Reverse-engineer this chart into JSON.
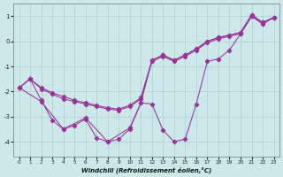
{
  "xlabel": "Windchill (Refroidissement éolien,°C)",
  "background_color": "#cce8e8",
  "grid_color": "#aacfcf",
  "line_color": "#993399",
  "xlim": [
    -0.5,
    23.5
  ],
  "ylim": [
    -4.6,
    1.5
  ],
  "yticks": [
    -4,
    -3,
    -2,
    -1,
    0,
    1
  ],
  "xticks": [
    0,
    1,
    2,
    3,
    4,
    5,
    6,
    7,
    8,
    9,
    10,
    11,
    12,
    13,
    14,
    15,
    16,
    17,
    18,
    19,
    20,
    21,
    22,
    23
  ],
  "line_zigzag_x": [
    0,
    1,
    2,
    3,
    4,
    5,
    6,
    7,
    8,
    9,
    10,
    11,
    12,
    13,
    14,
    15,
    16,
    17,
    18,
    19,
    20,
    21,
    22,
    23
  ],
  "line_zigzag_y": [
    -1.85,
    -1.5,
    -2.35,
    -3.15,
    -3.5,
    -3.35,
    -3.1,
    -3.85,
    -4.0,
    -3.9,
    -3.5,
    -2.45,
    -2.5,
    -3.55,
    -4.0,
    -3.9,
    -2.5,
    -0.8,
    -0.7,
    -0.35,
    0.3,
    1.0,
    0.7,
    0.95
  ],
  "line_diag1_x": [
    0,
    1,
    2,
    3,
    4,
    5,
    6,
    7,
    8,
    9,
    10,
    11,
    12,
    13,
    14,
    15,
    16,
    17,
    18,
    19,
    20,
    21,
    22,
    23
  ],
  "line_diag1_y": [
    -1.85,
    -1.5,
    -1.9,
    -2.1,
    -2.3,
    -2.4,
    -2.5,
    -2.6,
    -2.7,
    -2.75,
    -2.6,
    -2.3,
    -0.8,
    -0.6,
    -0.8,
    -0.6,
    -0.35,
    -0.05,
    0.1,
    0.2,
    0.3,
    1.0,
    0.7,
    0.95
  ],
  "line_diag2_x": [
    0,
    1,
    2,
    3,
    4,
    5,
    6,
    7,
    8,
    9,
    10,
    11,
    12,
    13,
    14,
    15,
    16,
    17,
    18,
    19,
    20,
    21,
    22,
    23
  ],
  "line_diag2_y": [
    -1.85,
    -1.5,
    -1.85,
    -2.05,
    -2.2,
    -2.35,
    -2.45,
    -2.55,
    -2.65,
    -2.7,
    -2.55,
    -2.25,
    -0.75,
    -0.55,
    -0.75,
    -0.55,
    -0.3,
    0.0,
    0.15,
    0.25,
    0.35,
    1.05,
    0.75,
    0.95
  ],
  "line_fan_x": [
    0,
    2,
    4,
    6,
    8,
    10,
    11,
    12,
    13,
    14,
    15,
    16,
    17,
    18,
    19,
    20,
    21,
    22,
    23
  ],
  "line_fan_y": [
    -1.85,
    -2.4,
    -3.5,
    -3.05,
    -4.0,
    -3.45,
    -2.45,
    -0.75,
    -0.55,
    -0.75,
    -0.55,
    -0.3,
    0.0,
    0.15,
    0.25,
    0.35,
    1.05,
    0.75,
    0.95
  ]
}
